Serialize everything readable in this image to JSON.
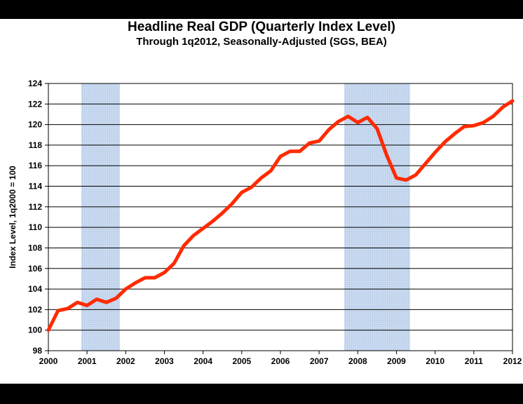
{
  "chart_data": {
    "type": "line",
    "title": "Headline Real GDP (Quarterly Index Level)",
    "subtitle": "Through 1q2012, Seasonally-Adjusted (SGS, BEA)",
    "xlabel": "",
    "ylabel": "Index Level, 1q2000 = 100",
    "xlim": [
      2000,
      2012
    ],
    "ylim": [
      98,
      124
    ],
    "x_ticks": [
      "2000",
      "2001",
      "2002",
      "2003",
      "2004",
      "2005",
      "2006",
      "2007",
      "2008",
      "2009",
      "2010",
      "2011",
      "2012"
    ],
    "y_ticks": [
      "98",
      "100",
      "102",
      "104",
      "106",
      "108",
      "110",
      "112",
      "114",
      "116",
      "118",
      "120",
      "122",
      "124"
    ],
    "recessions": [
      {
        "start": 2000.85,
        "end": 2001.85
      },
      {
        "start": 2007.65,
        "end": 2009.35
      }
    ],
    "series": [
      {
        "name": "Headline Real GDP",
        "color": "#ff2a00",
        "x": [
          2000.0,
          2000.25,
          2000.5,
          2000.75,
          2001.0,
          2001.25,
          2001.5,
          2001.75,
          2002.0,
          2002.25,
          2002.5,
          2002.75,
          2003.0,
          2003.25,
          2003.5,
          2003.75,
          2004.0,
          2004.25,
          2004.5,
          2004.75,
          2005.0,
          2005.25,
          2005.5,
          2005.75,
          2006.0,
          2006.25,
          2006.5,
          2006.75,
          2007.0,
          2007.25,
          2007.5,
          2007.75,
          2008.0,
          2008.25,
          2008.5,
          2008.75,
          2009.0,
          2009.25,
          2009.5,
          2009.75,
          2010.0,
          2010.25,
          2010.5,
          2010.75,
          2011.0,
          2011.25,
          2011.5,
          2011.75,
          2012.0
        ],
        "values": [
          100.0,
          101.9,
          102.1,
          102.7,
          102.4,
          103.0,
          102.7,
          103.1,
          104.0,
          104.6,
          105.1,
          105.1,
          105.6,
          106.5,
          108.2,
          109.2,
          109.9,
          110.6,
          111.4,
          112.3,
          113.4,
          113.9,
          114.8,
          115.5,
          116.9,
          117.4,
          117.4,
          118.2,
          118.4,
          119.5,
          120.3,
          120.8,
          120.2,
          120.7,
          119.6,
          117.0,
          114.8,
          114.6,
          115.1,
          116.2,
          117.3,
          118.3,
          119.1,
          119.8,
          119.9,
          120.2,
          120.8,
          121.7,
          122.3
        ]
      }
    ]
  }
}
